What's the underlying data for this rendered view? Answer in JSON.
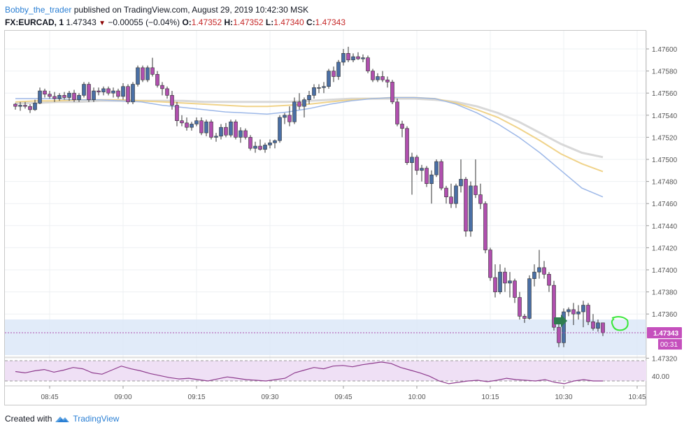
{
  "header": {
    "author": "Bobby_the_trader",
    "published": "published on TradingView.com, August 29, 2019 10:42:30 MSK",
    "symbol": "FX:EURCAD, 1",
    "last": "1.47343",
    "change_arrow": "▼",
    "change": "−0.00055 (−0.04%)",
    "o_label": "O:",
    "o": "1.47352",
    "h_label": "H:",
    "h": "1.47352",
    "l_label": "L:",
    "l": "1.47340",
    "c_label": "C:",
    "c": "1.47343"
  },
  "price_axis": {
    "ticks": [
      "1.47600",
      "1.47580",
      "1.47560",
      "1.47540",
      "1.47520",
      "1.47500",
      "1.47480",
      "1.47460",
      "1.47440",
      "1.47420",
      "1.47400",
      "1.47380",
      "1.47360",
      "1.47320"
    ],
    "current_price": "1.47343",
    "countdown": "00:31",
    "price_label_color": "#c550bd"
  },
  "time_axis": {
    "ticks": [
      "08:45",
      "09:00",
      "09:15",
      "09:30",
      "09:45",
      "10:00",
      "10:15",
      "10:30",
      "10:45"
    ]
  },
  "rsi": {
    "level_label": "40.00"
  },
  "colors": {
    "up_candle": "#4a6fa5",
    "down_candle": "#b04fae",
    "ma_fast": "#9db8e8",
    "ma_mid": "#f0d38a",
    "ma_slow": "#d8d8d8",
    "zone": "#dce8f8",
    "arrow": "#2e7d4f",
    "highlight": "#39e639"
  },
  "chart_data": {
    "type": "candlestick",
    "x_start": "08:38",
    "interval": "1m",
    "candles_ohlc": [
      [
        1.4755,
        1.47551,
        1.47545,
        1.47548
      ],
      [
        1.47548,
        1.47552,
        1.47544,
        1.47549
      ],
      [
        1.47549,
        1.47552,
        1.47546,
        1.47548
      ],
      [
        1.47548,
        1.4755,
        1.47542,
        1.47545
      ],
      [
        1.47545,
        1.47554,
        1.47544,
        1.47551
      ],
      [
        1.47551,
        1.47565,
        1.4755,
        1.47562
      ],
      [
        1.47562,
        1.47564,
        1.47556,
        1.47559
      ],
      [
        1.47559,
        1.47562,
        1.47555,
        1.47557
      ],
      [
        1.47557,
        1.47561,
        1.47552,
        1.47555
      ],
      [
        1.47555,
        1.4756,
        1.47553,
        1.47558
      ],
      [
        1.47558,
        1.47561,
        1.47554,
        1.47556
      ],
      [
        1.47556,
        1.47562,
        1.47553,
        1.4756
      ],
      [
        1.4756,
        1.47563,
        1.47552,
        1.47554
      ],
      [
        1.47554,
        1.4756,
        1.47552,
        1.47558
      ],
      [
        1.47558,
        1.4757,
        1.47556,
        1.47568
      ],
      [
        1.47568,
        1.4757,
        1.47552,
        1.47554
      ],
      [
        1.47554,
        1.47565,
        1.47552,
        1.47562
      ],
      [
        1.47562,
        1.47565,
        1.47558,
        1.47561
      ],
      [
        1.47561,
        1.47566,
        1.47558,
        1.47564
      ],
      [
        1.47564,
        1.47566,
        1.47558,
        1.4756
      ],
      [
        1.4756,
        1.47565,
        1.47556,
        1.47562
      ],
      [
        1.47562,
        1.47564,
        1.47555,
        1.47557
      ],
      [
        1.47557,
        1.47569,
        1.47554,
        1.47566
      ],
      [
        1.47566,
        1.47568,
        1.4755,
        1.47552
      ],
      [
        1.47552,
        1.4757,
        1.4755,
        1.47568
      ],
      [
        1.47568,
        1.47585,
        1.47566,
        1.47583
      ],
      [
        1.47583,
        1.47585,
        1.4757,
        1.47572
      ],
      [
        1.47572,
        1.47585,
        1.4757,
        1.47583
      ],
      [
        1.47583,
        1.47592,
        1.47575,
        1.47577
      ],
      [
        1.47577,
        1.4758,
        1.47565,
        1.47567
      ],
      [
        1.47567,
        1.4757,
        1.47558,
        1.47564
      ],
      [
        1.47564,
        1.47566,
        1.47555,
        1.47558
      ],
      [
        1.47558,
        1.47562,
        1.47545,
        1.47549
      ],
      [
        1.47549,
        1.47552,
        1.4753,
        1.47535
      ],
      [
        1.47535,
        1.4754,
        1.4753,
        1.47533
      ],
      [
        1.47533,
        1.47538,
        1.47526,
        1.47529
      ],
      [
        1.47529,
        1.47534,
        1.47526,
        1.47532
      ],
      [
        1.47532,
        1.47538,
        1.4753,
        1.47535
      ],
      [
        1.47535,
        1.47538,
        1.47522,
        1.47524
      ],
      [
        1.47524,
        1.47536,
        1.47521,
        1.47534
      ],
      [
        1.47534,
        1.47536,
        1.47518,
        1.4752
      ],
      [
        1.4752,
        1.47524,
        1.47516,
        1.47521
      ],
      [
        1.47521,
        1.47532,
        1.47518,
        1.47529
      ],
      [
        1.47529,
        1.47533,
        1.4752,
        1.47522
      ],
      [
        1.47522,
        1.47536,
        1.4752,
        1.47534
      ],
      [
        1.47534,
        1.47536,
        1.47518,
        1.4752
      ],
      [
        1.4752,
        1.47529,
        1.47515,
        1.47526
      ],
      [
        1.47526,
        1.47528,
        1.47518,
        1.4752
      ],
      [
        1.4752,
        1.47522,
        1.47508,
        1.4751
      ],
      [
        1.4751,
        1.47516,
        1.47506,
        1.47512
      ],
      [
        1.47512,
        1.47518,
        1.47508,
        1.47509
      ],
      [
        1.47509,
        1.47515,
        1.47506,
        1.47513
      ],
      [
        1.47513,
        1.47518,
        1.4751,
        1.47515
      ],
      [
        1.47515,
        1.47518,
        1.4751,
        1.47517
      ],
      [
        1.47517,
        1.4754,
        1.47515,
        1.47538
      ],
      [
        1.47538,
        1.47542,
        1.47532,
        1.4754
      ],
      [
        1.4754,
        1.47548,
        1.4753,
        1.47534
      ],
      [
        1.47534,
        1.47556,
        1.47532,
        1.47552
      ],
      [
        1.47552,
        1.4756,
        1.47545,
        1.47548
      ],
      [
        1.47548,
        1.47556,
        1.47538,
        1.47554
      ],
      [
        1.47554,
        1.47562,
        1.4755,
        1.47558
      ],
      [
        1.47558,
        1.47568,
        1.47555,
        1.47565
      ],
      [
        1.47565,
        1.47568,
        1.4756,
        1.47565
      ],
      [
        1.47565,
        1.4757,
        1.4756,
        1.47566
      ],
      [
        1.47566,
        1.47582,
        1.47564,
        1.4758
      ],
      [
        1.4758,
        1.47584,
        1.4757,
        1.47575
      ],
      [
        1.47575,
        1.4759,
        1.47572,
        1.47588
      ],
      [
        1.47588,
        1.476,
        1.47585,
        1.47596
      ],
      [
        1.47596,
        1.47602,
        1.47588,
        1.4759
      ],
      [
        1.4759,
        1.47596,
        1.47588,
        1.47593
      ],
      [
        1.47593,
        1.47597,
        1.4759,
        1.47591
      ],
      [
        1.47591,
        1.47595,
        1.47588,
        1.47592
      ],
      [
        1.47592,
        1.47594,
        1.47578,
        1.4758
      ],
      [
        1.4758,
        1.47582,
        1.4757,
        1.47572
      ],
      [
        1.47572,
        1.47578,
        1.4757,
        1.47575
      ],
      [
        1.47575,
        1.4758,
        1.4757,
        1.47572
      ],
      [
        1.47572,
        1.47575,
        1.47565,
        1.4757
      ],
      [
        1.4757,
        1.47572,
        1.4755,
        1.47552
      ],
      [
        1.47552,
        1.47555,
        1.4753,
        1.47532
      ],
      [
        1.47532,
        1.47535,
        1.4752,
        1.47528
      ],
      [
        1.47528,
        1.4753,
        1.47495,
        1.47497
      ],
      [
        1.47497,
        1.47506,
        1.47468,
        1.47502
      ],
      [
        1.47502,
        1.47504,
        1.47486,
        1.4749
      ],
      [
        1.4749,
        1.47495,
        1.4748,
        1.47492
      ],
      [
        1.47492,
        1.47494,
        1.47475,
        1.47478
      ],
      [
        1.47478,
        1.4749,
        1.4746,
        1.47486
      ],
      [
        1.47486,
        1.475,
        1.47484,
        1.47498
      ],
      [
        1.47498,
        1.475,
        1.47472,
        1.47474
      ],
      [
        1.47474,
        1.47476,
        1.4746,
        1.47466
      ],
      [
        1.47466,
        1.47478,
        1.47456,
        1.4746
      ],
      [
        1.4746,
        1.47478,
        1.47456,
        1.47476
      ],
      [
        1.47476,
        1.475,
        1.4747,
        1.47482
      ],
      [
        1.47482,
        1.47484,
        1.4743,
        1.47435
      ],
      [
        1.47435,
        1.4748,
        1.4743,
        1.47476
      ],
      [
        1.47476,
        1.475,
        1.47465,
        1.47468
      ],
      [
        1.47468,
        1.47478,
        1.47455,
        1.4746
      ],
      [
        1.4746,
        1.47462,
        1.47415,
        1.47418
      ],
      [
        1.47418,
        1.4742,
        1.4739,
        1.47393
      ],
      [
        1.47393,
        1.47405,
        1.47375,
        1.4738
      ],
      [
        1.4738,
        1.47405,
        1.47378,
        1.47398
      ],
      [
        1.47398,
        1.47402,
        1.4738,
        1.47388
      ],
      [
        1.47388,
        1.47398,
        1.47375,
        1.4739
      ],
      [
        1.4739,
        1.47392,
        1.4737,
        1.47375
      ],
      [
        1.47375,
        1.4738,
        1.47355,
        1.47358
      ],
      [
        1.47358,
        1.4736,
        1.47352,
        1.47356
      ],
      [
        1.47356,
        1.47395,
        1.47355,
        1.47392
      ],
      [
        1.47392,
        1.47405,
        1.47385,
        1.47398
      ],
      [
        1.47398,
        1.47418,
        1.47392,
        1.47402
      ],
      [
        1.47402,
        1.47408,
        1.47392,
        1.47396
      ],
      [
        1.47396,
        1.47398,
        1.4738,
        1.47386
      ],
      [
        1.47386,
        1.4739,
        1.47345,
        1.47348
      ],
      [
        1.47348,
        1.47355,
        1.4733,
        1.47334
      ],
      [
        1.47334,
        1.47365,
        1.4733,
        1.47362
      ],
      [
        1.47362,
        1.47366,
        1.47358,
        1.47364
      ],
      [
        1.47364,
        1.4737,
        1.4735,
        1.4736
      ],
      [
        1.4736,
        1.47368,
        1.47355,
        1.47362
      ],
      [
        1.47362,
        1.47372,
        1.47348,
        1.47368
      ],
      [
        1.47368,
        1.4737,
        1.4735,
        1.47353
      ],
      [
        1.47353,
        1.4736,
        1.47345,
        1.47347
      ],
      [
        1.47347,
        1.47355,
        1.47344,
        1.47352
      ],
      [
        1.47352,
        1.47352,
        1.4734,
        1.47343
      ]
    ],
    "ma_fast": [
      1.47555,
      1.47555,
      1.47555,
      1.47554,
      1.47554,
      1.47553,
      1.47552,
      1.47549,
      1.47547,
      1.47545,
      1.47543,
      1.47542,
      1.47541,
      1.47543,
      1.47546,
      1.4755,
      1.47553,
      1.47555,
      1.47556,
      1.47556,
      1.47555,
      1.4755,
      1.47542,
      1.47532,
      1.4752,
      1.47506,
      1.4749,
      1.47474,
      1.47466
    ],
    "ma_mid": [
      1.47552,
      1.47553,
      1.47553,
      1.47554,
      1.47554,
      1.47554,
      1.47553,
      1.47552,
      1.47551,
      1.4755,
      1.47549,
      1.47548,
      1.47548,
      1.47549,
      1.4755,
      1.47552,
      1.47554,
      1.47555,
      1.47556,
      1.47556,
      1.47555,
      1.47551,
      1.47545,
      1.47538,
      1.47528,
      1.47517,
      1.47505,
      1.47496,
      1.47489
    ],
    "ma_slow": [
      1.47551,
      1.47551,
      1.47552,
      1.47552,
      1.47553,
      1.47553,
      1.47553,
      1.47553,
      1.47553,
      1.47552,
      1.47552,
      1.47552,
      1.47552,
      1.47552,
      1.47553,
      1.47554,
      1.47555,
      1.47555,
      1.47555,
      1.47555,
      1.47554,
      1.47552,
      1.47548,
      1.47542,
      1.47534,
      1.47524,
      1.47514,
      1.47506,
      1.47502
    ],
    "rsi": [
      54,
      52,
      55,
      57,
      53,
      56,
      60,
      58,
      52,
      50,
      56,
      62,
      58,
      55,
      51,
      48,
      45,
      43,
      44,
      42,
      40,
      43,
      46,
      44,
      42,
      41,
      40,
      42,
      44,
      52,
      56,
      60,
      58,
      62,
      63,
      61,
      64,
      66,
      68,
      66,
      60,
      56,
      52,
      47,
      40,
      36,
      38,
      40,
      41,
      39,
      41,
      44,
      42,
      41,
      40,
      42,
      38,
      36,
      40,
      42,
      40,
      40
    ],
    "ylim": [
      1.4731,
      1.4761
    ]
  }
}
